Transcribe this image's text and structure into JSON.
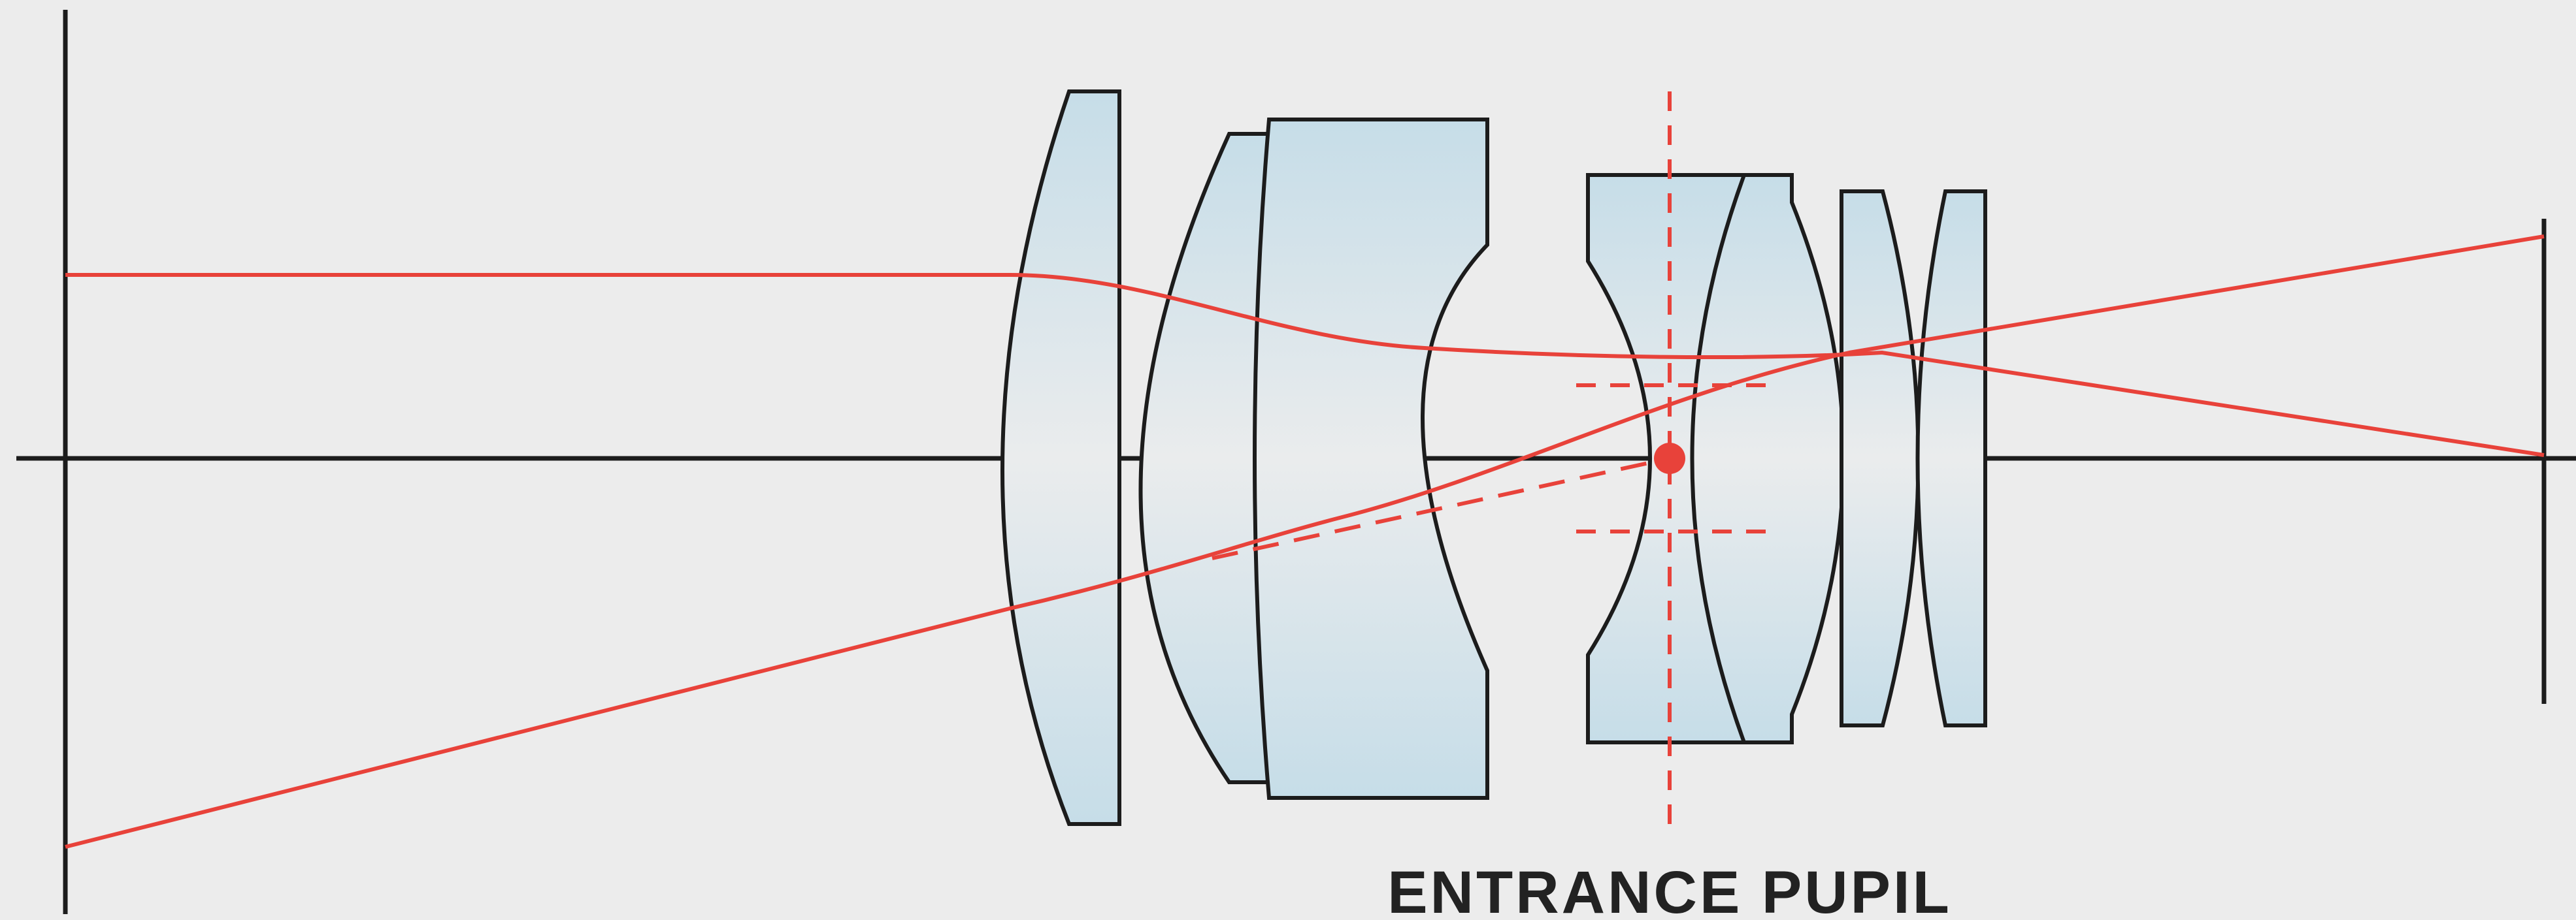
{
  "labels": {
    "entrance_pupil": "ENTRANCE PUPIL"
  },
  "colors": {
    "background": "#ececec",
    "outline": "#1c1c1c",
    "ray": "#e8423a",
    "glass_edge": "#c6dde8",
    "glass_center": "#eaeced"
  }
}
